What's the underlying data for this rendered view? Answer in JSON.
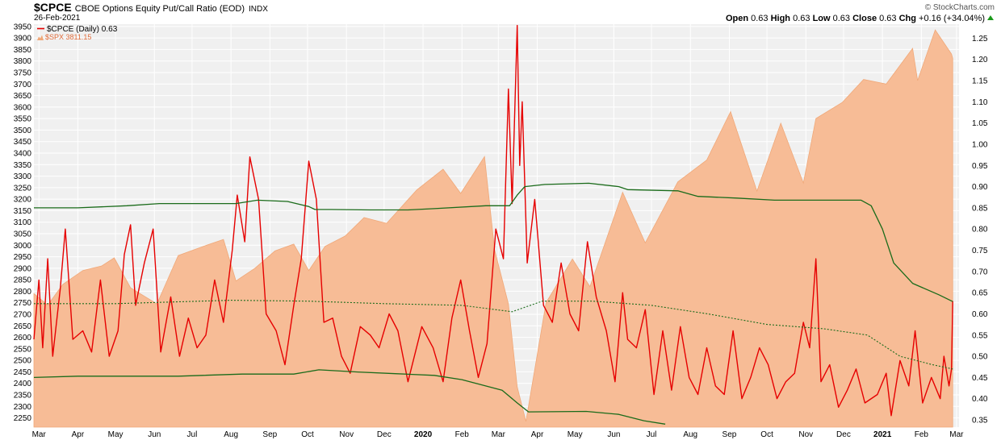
{
  "header": {
    "symbol": "$CPCE",
    "name": "CBOE Options Equity Put/Call Ratio (EOD)",
    "exchange": "INDX",
    "date": "26-Feb-2021",
    "brand": "© StockCharts.com",
    "quote": [
      {
        "label": "Open",
        "value": "0.63"
      },
      {
        "label": "High",
        "value": "0.63"
      },
      {
        "label": "Low",
        "value": "0.63"
      },
      {
        "label": "Close",
        "value": "0.63"
      },
      {
        "label": "Chg",
        "value": "+0.16 (+34.04%)"
      }
    ],
    "chg_arrow_color": "#1a9a1a"
  },
  "legend": {
    "cpce": "$CPCE (Daily) 0.63",
    "spx": "$SPX 3811.15"
  },
  "colors": {
    "cpce_line": "#e60000",
    "spx_fill": "#f7bc96",
    "spx_stroke": "#f0a878",
    "band": "#1a6b1a",
    "plot_bg": "#f0f0f0",
    "grid": "#ffffff"
  },
  "chart_data": {
    "type": "line",
    "grid": true,
    "x_labels": [
      "Mar",
      "Apr",
      "May",
      "Jun",
      "Jul",
      "Aug",
      "Sep",
      "Oct",
      "Nov",
      "Dec",
      "2020",
      "Feb",
      "Mar",
      "Apr",
      "May",
      "Jun",
      "Jul",
      "Aug",
      "Sep",
      "Oct",
      "Nov",
      "Dec",
      "2021",
      "Feb",
      "Mar"
    ],
    "bold_x_labels": [
      "2020",
      "2021"
    ],
    "x_range": [
      "2019-02-25",
      "2021-03-03"
    ],
    "y_left": {
      "name": "$SPX",
      "ylim": [
        2210,
        3960
      ],
      "ticks": [
        2250,
        2300,
        2350,
        2400,
        2450,
        2500,
        2550,
        2600,
        2650,
        2700,
        2750,
        2800,
        2850,
        2900,
        2950,
        3000,
        3050,
        3100,
        3150,
        3200,
        3250,
        3300,
        3350,
        3400,
        3450,
        3500,
        3550,
        3600,
        3650,
        3700,
        3750,
        3800,
        3850,
        3900,
        3950
      ]
    },
    "y_right": {
      "name": "$CPCE",
      "ylim": [
        0.333,
        1.283
      ],
      "ticks": [
        0.35,
        0.4,
        0.45,
        0.5,
        0.55,
        0.6,
        0.65,
        0.7,
        0.75,
        0.8,
        0.85,
        0.9,
        0.95,
        1.0,
        1.05,
        1.1,
        1.15,
        1.2,
        1.25
      ]
    },
    "series": [
      {
        "name": "$SPX",
        "kind": "area",
        "axis": "left",
        "points": [
          [
            "2019-02-25",
            2790
          ],
          [
            "2019-03-08",
            2740
          ],
          [
            "2019-03-20",
            2830
          ],
          [
            "2019-04-05",
            2890
          ],
          [
            "2019-04-20",
            2910
          ],
          [
            "2019-04-30",
            2945
          ],
          [
            "2019-05-13",
            2815
          ],
          [
            "2019-06-03",
            2745
          ],
          [
            "2019-06-20",
            2955
          ],
          [
            "2019-07-10",
            2995
          ],
          [
            "2019-07-26",
            3025
          ],
          [
            "2019-08-05",
            2845
          ],
          [
            "2019-08-20",
            2900
          ],
          [
            "2019-09-05",
            2975
          ],
          [
            "2019-09-20",
            3005
          ],
          [
            "2019-10-02",
            2890
          ],
          [
            "2019-10-15",
            2995
          ],
          [
            "2019-10-31",
            3040
          ],
          [
            "2019-11-15",
            3120
          ],
          [
            "2019-12-03",
            3095
          ],
          [
            "2019-12-27",
            3240
          ],
          [
            "2020-01-17",
            3330
          ],
          [
            "2020-01-31",
            3225
          ],
          [
            "2020-02-19",
            3385
          ],
          [
            "2020-02-27",
            2980
          ],
          [
            "2020-03-09",
            2745
          ],
          [
            "2020-03-16",
            2385
          ],
          [
            "2020-03-23",
            2235
          ],
          [
            "2020-04-08",
            2750
          ],
          [
            "2020-04-29",
            2940
          ],
          [
            "2020-05-13",
            2820
          ],
          [
            "2020-06-08",
            3230
          ],
          [
            "2020-06-26",
            3010
          ],
          [
            "2020-07-22",
            3275
          ],
          [
            "2020-08-14",
            3370
          ],
          [
            "2020-09-02",
            3580
          ],
          [
            "2020-09-23",
            3235
          ],
          [
            "2020-10-12",
            3530
          ],
          [
            "2020-10-30",
            3270
          ],
          [
            "2020-11-09",
            3550
          ],
          [
            "2020-11-30",
            3620
          ],
          [
            "2020-12-17",
            3720
          ],
          [
            "2021-01-04",
            3700
          ],
          [
            "2021-01-25",
            3855
          ],
          [
            "2021-01-29",
            3715
          ],
          [
            "2021-02-12",
            3935
          ],
          [
            "2021-02-25",
            3830
          ],
          [
            "2021-02-26",
            3811.15
          ]
        ]
      },
      {
        "name": "$CPCE (Daily)",
        "kind": "line",
        "axis": "right",
        "points": [
          [
            "2019-02-25",
            0.54
          ],
          [
            "2019-03-01",
            0.68
          ],
          [
            "2019-03-04",
            0.52
          ],
          [
            "2019-03-08",
            0.73
          ],
          [
            "2019-03-12",
            0.5
          ],
          [
            "2019-03-18",
            0.66
          ],
          [
            "2019-03-22",
            0.8
          ],
          [
            "2019-03-28",
            0.54
          ],
          [
            "2019-04-05",
            0.56
          ],
          [
            "2019-04-12",
            0.51
          ],
          [
            "2019-04-19",
            0.68
          ],
          [
            "2019-04-26",
            0.5
          ],
          [
            "2019-05-03",
            0.56
          ],
          [
            "2019-05-08",
            0.74
          ],
          [
            "2019-05-13",
            0.81
          ],
          [
            "2019-05-17",
            0.62
          ],
          [
            "2019-05-24",
            0.72
          ],
          [
            "2019-05-31",
            0.8
          ],
          [
            "2019-06-06",
            0.51
          ],
          [
            "2019-06-14",
            0.64
          ],
          [
            "2019-06-21",
            0.5
          ],
          [
            "2019-06-28",
            0.59
          ],
          [
            "2019-07-05",
            0.52
          ],
          [
            "2019-07-12",
            0.55
          ],
          [
            "2019-07-19",
            0.68
          ],
          [
            "2019-07-26",
            0.58
          ],
          [
            "2019-08-02",
            0.75
          ],
          [
            "2019-08-06",
            0.88
          ],
          [
            "2019-08-12",
            0.77
          ],
          [
            "2019-08-16",
            0.97
          ],
          [
            "2019-08-23",
            0.87
          ],
          [
            "2019-08-29",
            0.6
          ],
          [
            "2019-09-06",
            0.56
          ],
          [
            "2019-09-13",
            0.48
          ],
          [
            "2019-09-20",
            0.62
          ],
          [
            "2019-09-26",
            0.73
          ],
          [
            "2019-10-02",
            0.96
          ],
          [
            "2019-10-08",
            0.87
          ],
          [
            "2019-10-14",
            0.58
          ],
          [
            "2019-10-21",
            0.59
          ],
          [
            "2019-10-28",
            0.5
          ],
          [
            "2019-11-04",
            0.46
          ],
          [
            "2019-11-12",
            0.57
          ],
          [
            "2019-11-20",
            0.55
          ],
          [
            "2019-11-27",
            0.52
          ],
          [
            "2019-12-05",
            0.6
          ],
          [
            "2019-12-12",
            0.56
          ],
          [
            "2019-12-20",
            0.44
          ],
          [
            "2019-12-31",
            0.57
          ],
          [
            "2020-01-09",
            0.52
          ],
          [
            "2020-01-17",
            0.44
          ],
          [
            "2020-01-24",
            0.59
          ],
          [
            "2020-01-31",
            0.68
          ],
          [
            "2020-02-07",
            0.56
          ],
          [
            "2020-02-14",
            0.45
          ],
          [
            "2020-02-21",
            0.53
          ],
          [
            "2020-02-28",
            0.8
          ],
          [
            "2020-03-05",
            0.73
          ],
          [
            "2020-03-09",
            1.13
          ],
          [
            "2020-03-12",
            0.86
          ],
          [
            "2020-03-16",
            1.28
          ],
          [
            "2020-03-18",
            0.95
          ],
          [
            "2020-03-20",
            1.1
          ],
          [
            "2020-03-24",
            0.72
          ],
          [
            "2020-03-30",
            0.87
          ],
          [
            "2020-04-06",
            0.62
          ],
          [
            "2020-04-13",
            0.58
          ],
          [
            "2020-04-20",
            0.72
          ],
          [
            "2020-04-27",
            0.6
          ],
          [
            "2020-05-04",
            0.56
          ],
          [
            "2020-05-11",
            0.77
          ],
          [
            "2020-05-18",
            0.64
          ],
          [
            "2020-05-26",
            0.56
          ],
          [
            "2020-06-02",
            0.44
          ],
          [
            "2020-06-08",
            0.65
          ],
          [
            "2020-06-12",
            0.54
          ],
          [
            "2020-06-19",
            0.52
          ],
          [
            "2020-06-26",
            0.61
          ],
          [
            "2020-07-03",
            0.41
          ],
          [
            "2020-07-10",
            0.56
          ],
          [
            "2020-07-17",
            0.42
          ],
          [
            "2020-07-24",
            0.57
          ],
          [
            "2020-07-31",
            0.45
          ],
          [
            "2020-08-07",
            0.41
          ],
          [
            "2020-08-14",
            0.52
          ],
          [
            "2020-08-21",
            0.43
          ],
          [
            "2020-08-28",
            0.41
          ],
          [
            "2020-09-04",
            0.56
          ],
          [
            "2020-09-11",
            0.4
          ],
          [
            "2020-09-18",
            0.45
          ],
          [
            "2020-09-25",
            0.52
          ],
          [
            "2020-10-02",
            0.48
          ],
          [
            "2020-10-09",
            0.4
          ],
          [
            "2020-10-16",
            0.44
          ],
          [
            "2020-10-23",
            0.46
          ],
          [
            "2020-10-30",
            0.58
          ],
          [
            "2020-11-04",
            0.52
          ],
          [
            "2020-11-09",
            0.73
          ],
          [
            "2020-11-13",
            0.44
          ],
          [
            "2020-11-20",
            0.48
          ],
          [
            "2020-11-27",
            0.38
          ],
          [
            "2020-12-04",
            0.42
          ],
          [
            "2020-12-11",
            0.47
          ],
          [
            "2020-12-18",
            0.39
          ],
          [
            "2020-12-28",
            0.41
          ],
          [
            "2021-01-04",
            0.46
          ],
          [
            "2021-01-08",
            0.36
          ],
          [
            "2021-01-15",
            0.49
          ],
          [
            "2021-01-22",
            0.43
          ],
          [
            "2021-01-27",
            0.56
          ],
          [
            "2021-02-02",
            0.39
          ],
          [
            "2021-02-09",
            0.45
          ],
          [
            "2021-02-16",
            0.4
          ],
          [
            "2021-02-19",
            0.5
          ],
          [
            "2021-02-23",
            0.43
          ],
          [
            "2021-02-25",
            0.47
          ],
          [
            "2021-02-26",
            0.63
          ]
        ]
      },
      {
        "name": "upper band",
        "kind": "line",
        "axis": "right",
        "color": "#1a6b1a",
        "points": [
          [
            "2019-02-25",
            0.85
          ],
          [
            "2019-04-01",
            0.85
          ],
          [
            "2019-05-10",
            0.855
          ],
          [
            "2019-06-05",
            0.86
          ],
          [
            "2019-07-15",
            0.86
          ],
          [
            "2019-08-05",
            0.86
          ],
          [
            "2019-08-22",
            0.868
          ],
          [
            "2019-09-15",
            0.865
          ],
          [
            "2019-10-02",
            0.853
          ],
          [
            "2019-10-07",
            0.846
          ],
          [
            "2019-10-20",
            0.846
          ],
          [
            "2019-11-20",
            0.845
          ],
          [
            "2019-12-20",
            0.845
          ],
          [
            "2020-01-10",
            0.848
          ],
          [
            "2020-02-20",
            0.855
          ],
          [
            "2020-03-01",
            0.855
          ],
          [
            "2020-03-10",
            0.855
          ],
          [
            "2020-03-16",
            0.88
          ],
          [
            "2020-03-22",
            0.9
          ],
          [
            "2020-04-07",
            0.905
          ],
          [
            "2020-05-12",
            0.908
          ],
          [
            "2020-06-05",
            0.9
          ],
          [
            "2020-06-12",
            0.893
          ],
          [
            "2020-07-22",
            0.89
          ],
          [
            "2020-08-07",
            0.877
          ],
          [
            "2020-09-07",
            0.873
          ],
          [
            "2020-10-07",
            0.868
          ],
          [
            "2020-11-22",
            0.868
          ],
          [
            "2020-12-15",
            0.868
          ],
          [
            "2020-12-23",
            0.855
          ],
          [
            "2021-01-01",
            0.8
          ],
          [
            "2021-01-10",
            0.72
          ],
          [
            "2021-01-25",
            0.672
          ],
          [
            "2021-02-15",
            0.645
          ],
          [
            "2021-02-26",
            0.629
          ]
        ]
      },
      {
        "name": "moving average",
        "kind": "line",
        "axis": "right",
        "color": "#1a6b1a",
        "dashed": true,
        "points": [
          [
            "2019-02-25",
            0.624
          ],
          [
            "2019-05-01",
            0.624
          ],
          [
            "2019-08-01",
            0.632
          ],
          [
            "2019-10-01",
            0.63
          ],
          [
            "2019-12-01",
            0.624
          ],
          [
            "2020-02-01",
            0.62
          ],
          [
            "2020-03-12",
            0.605
          ],
          [
            "2020-04-05",
            0.63
          ],
          [
            "2020-05-15",
            0.63
          ],
          [
            "2020-07-01",
            0.62
          ],
          [
            "2020-08-15",
            0.6
          ],
          [
            "2020-10-01",
            0.575
          ],
          [
            "2020-11-15",
            0.565
          ],
          [
            "2020-12-20",
            0.55
          ],
          [
            "2021-01-15",
            0.5
          ],
          [
            "2021-02-10",
            0.48
          ],
          [
            "2021-02-26",
            0.47
          ]
        ]
      },
      {
        "name": "lower band",
        "kind": "line",
        "axis": "right",
        "color": "#1a6b1a",
        "points": [
          [
            "2019-02-25",
            0.45
          ],
          [
            "2019-04-01",
            0.453
          ],
          [
            "2019-06-20",
            0.453
          ],
          [
            "2019-08-10",
            0.458
          ],
          [
            "2019-09-20",
            0.458
          ],
          [
            "2019-10-10",
            0.468
          ],
          [
            "2019-11-10",
            0.463
          ],
          [
            "2019-12-10",
            0.459
          ],
          [
            "2020-01-10",
            0.455
          ],
          [
            "2020-02-01",
            0.445
          ],
          [
            "2020-03-04",
            0.42
          ],
          [
            "2020-03-16",
            0.39
          ],
          [
            "2020-03-25",
            0.369
          ],
          [
            "2020-05-10",
            0.37
          ],
          [
            "2020-06-05",
            0.363
          ],
          [
            "2020-06-25",
            0.348
          ],
          [
            "2020-07-12",
            0.34
          ]
        ]
      }
    ]
  }
}
